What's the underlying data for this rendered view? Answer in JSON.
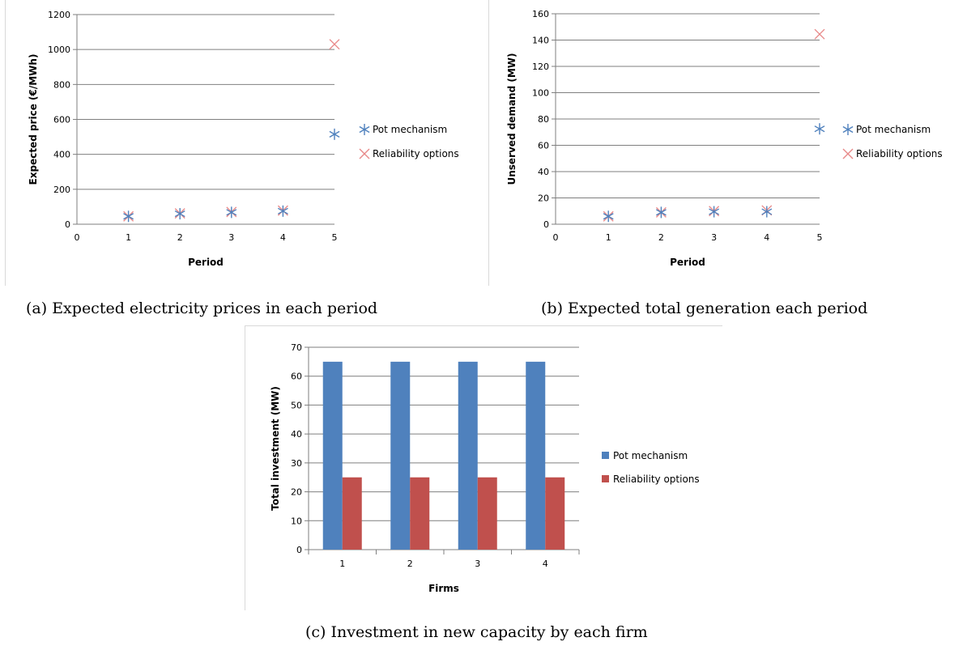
{
  "captions": {
    "a": "(a) Expected electricity prices in each period",
    "b": "(b) Expected total generation each period",
    "c": "(c) Investment in new capacity by each firm"
  },
  "colors": {
    "pot": "#4f81bd",
    "reliability": "#c0504d",
    "scatter_reliability": "#e88a8a",
    "grid": "#7f7f7f"
  },
  "chart_data": [
    {
      "type": "scatter",
      "xlabel": "Period",
      "ylabel": "Expected price (€/MWh)",
      "xlim": [
        0,
        5
      ],
      "ylim": [
        0,
        1200
      ],
      "xticks": [
        0,
        1,
        2,
        3,
        4,
        5
      ],
      "yticks": [
        0,
        200,
        400,
        600,
        800,
        1000,
        1200
      ],
      "grid": true,
      "legend_position": "right",
      "series": [
        {
          "name": "Pot mechanism",
          "marker": "asterisk",
          "x": [
            1,
            2,
            3,
            4,
            5
          ],
          "y": [
            45,
            60,
            68,
            75,
            515
          ]
        },
        {
          "name": "Reliability options",
          "marker": "x",
          "x": [
            1,
            2,
            3,
            4,
            5
          ],
          "y": [
            45,
            62,
            70,
            78,
            1030
          ]
        }
      ]
    },
    {
      "type": "scatter",
      "xlabel": "Period",
      "ylabel": "Unserved demand (MW)",
      "xlim": [
        0,
        5
      ],
      "ylim": [
        0,
        160
      ],
      "xticks": [
        0,
        1,
        2,
        3,
        4,
        5
      ],
      "yticks": [
        0,
        20,
        40,
        60,
        80,
        100,
        120,
        140,
        160
      ],
      "grid": true,
      "legend_position": "right",
      "series": [
        {
          "name": "Pot mechanism",
          "marker": "asterisk",
          "x": [
            1,
            2,
            3,
            4,
            5
          ],
          "y": [
            6,
            9,
            9.5,
            9.5,
            72.5
          ]
        },
        {
          "name": "Reliability options",
          "marker": "x",
          "x": [
            1,
            2,
            3,
            4,
            5
          ],
          "y": [
            6,
            9,
            10,
            10.5,
            144.5
          ]
        }
      ]
    },
    {
      "type": "bar",
      "xlabel": "Firms",
      "ylabel": "Total investment (MW)",
      "categories": [
        "1",
        "2",
        "3",
        "4"
      ],
      "ylim": [
        0,
        70
      ],
      "yticks": [
        0,
        10,
        20,
        30,
        40,
        50,
        60,
        70
      ],
      "grid": true,
      "legend_position": "right",
      "series": [
        {
          "name": "Pot mechanism",
          "values": [
            65,
            65,
            65,
            65
          ]
        },
        {
          "name": "Reliability options",
          "values": [
            25,
            25,
            25,
            25
          ]
        }
      ]
    }
  ]
}
